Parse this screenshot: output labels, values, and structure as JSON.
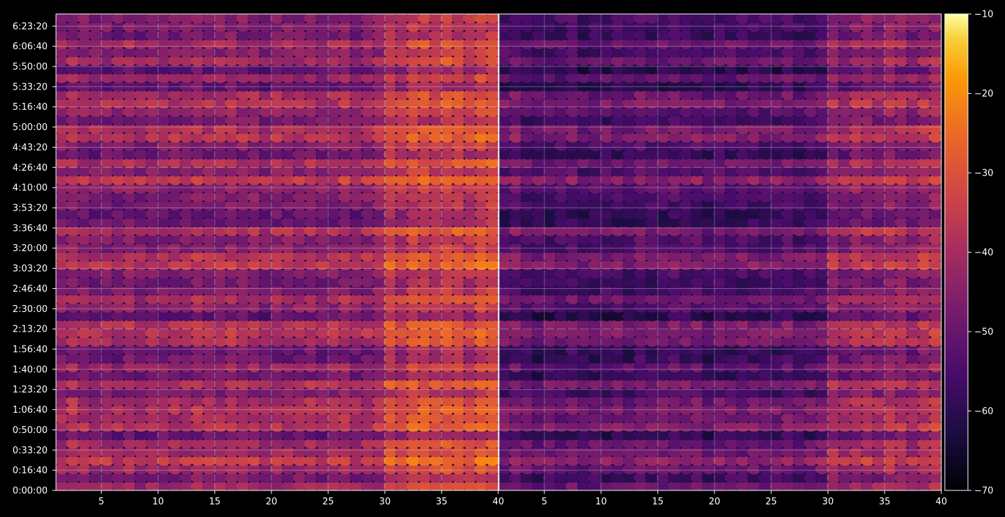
{
  "chart_data": {
    "type": "heatmap",
    "title": "",
    "xlabel": "",
    "ylabel": "",
    "grid": true,
    "background": "#000000",
    "colormap": "inferno",
    "x_range": [
      1,
      40
    ],
    "y_range_seconds": [
      0,
      23600
    ],
    "panels": [
      {
        "x_ticks": [
          "5",
          "10",
          "15",
          "20",
          "25",
          "30",
          "35",
          "40"
        ],
        "x_tick_values": [
          5,
          10,
          15,
          20,
          25,
          30,
          35,
          40
        ],
        "level_offset": 0
      },
      {
        "x_ticks": [
          "5",
          "10",
          "15",
          "20",
          "25",
          "30",
          "35",
          "40"
        ],
        "x_tick_values": [
          5,
          10,
          15,
          20,
          25,
          30,
          35,
          40
        ],
        "level_offset": -9
      }
    ],
    "y_ticks": [
      "0:00:00",
      "0:16:40",
      "0:33:20",
      "0:50:00",
      "1:06:40",
      "1:23:20",
      "1:40:00",
      "1:56:40",
      "2:13:20",
      "2:30:00",
      "2:46:40",
      "3:03:20",
      "3:20:00",
      "3:36:40",
      "3:53:20",
      "4:10:00",
      "4:26:40",
      "4:43:20",
      "5:00:00",
      "5:16:40",
      "5:33:20",
      "5:50:00",
      "6:06:40",
      "6:23:20"
    ],
    "y_tick_values": [
      0,
      1000,
      2000,
      3000,
      4000,
      5000,
      6000,
      7000,
      8000,
      9000,
      10000,
      11000,
      12000,
      13000,
      14000,
      15000,
      16000,
      17000,
      18000,
      19000,
      20000,
      21000,
      22000,
      23000
    ],
    "colorbar": {
      "min": -70,
      "max": -10,
      "ticks": [
        "−10",
        "−20",
        "−30",
        "−40",
        "−50",
        "−60",
        "−70"
      ],
      "tick_values": [
        -10,
        -20,
        -30,
        -40,
        -50,
        -60,
        -70
      ]
    }
  }
}
